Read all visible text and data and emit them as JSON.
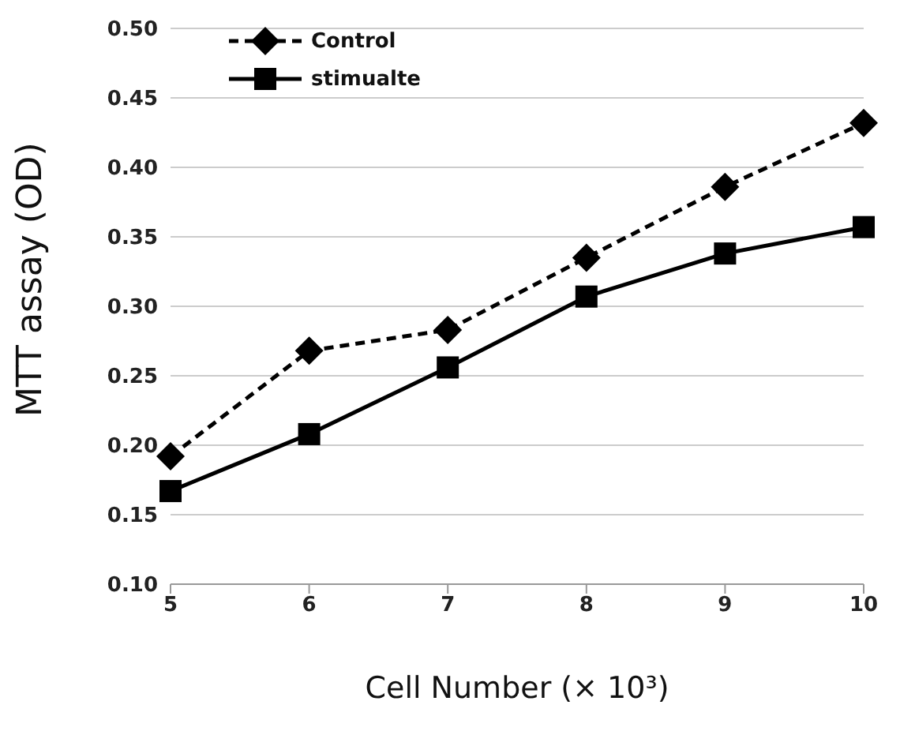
{
  "chart_data": {
    "type": "line",
    "xlabel": "Cell Number (× 10³)",
    "ylabel": "MTT assay (OD)",
    "categories": [
      "5",
      "6",
      "7",
      "8",
      "9",
      "10"
    ],
    "series": [
      {
        "name": "Control",
        "color": "#000000",
        "marker": "diamond",
        "line_style": "dashed",
        "values": [
          0.192,
          0.268,
          0.283,
          0.335,
          0.386,
          0.432
        ]
      },
      {
        "name": "stimualte",
        "color": "#000000",
        "marker": "square",
        "line_style": "solid",
        "values": [
          0.167,
          0.208,
          0.256,
          0.307,
          0.338,
          0.357
        ]
      }
    ],
    "ylim": [
      0.1,
      0.5
    ],
    "yticks": [
      {
        "value": 0.1,
        "label": "0.10"
      },
      {
        "value": 0.15,
        "label": "0.15"
      },
      {
        "value": 0.2,
        "label": "0.20"
      },
      {
        "value": 0.25,
        "label": "0.25"
      },
      {
        "value": 0.3,
        "label": "0.30"
      },
      {
        "value": 0.35,
        "label": "0.35"
      },
      {
        "value": 0.4,
        "label": "0.40"
      },
      {
        "value": 0.45,
        "label": "0.45"
      },
      {
        "value": 0.5,
        "label": "0.50"
      }
    ],
    "grid": "y",
    "legend": "top left"
  }
}
